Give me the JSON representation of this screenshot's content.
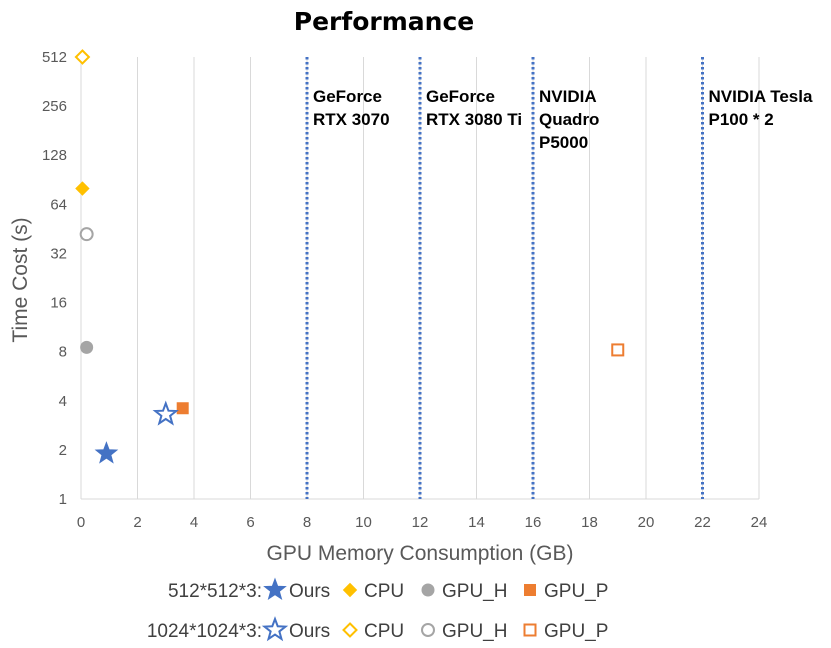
{
  "chart_data": {
    "type": "scatter",
    "title": "Performance",
    "xlabel": "GPU Memory Consumption (GB)",
    "ylabel": "Time Cost (s)",
    "xlim": [
      0,
      24
    ],
    "ylim": [
      1,
      512
    ],
    "yscale": "log2",
    "xticks": [
      "0",
      "2",
      "4",
      "6",
      "8",
      "10",
      "12",
      "14",
      "16",
      "18",
      "20",
      "22",
      "24"
    ],
    "yticks": [
      "1",
      "2",
      "4",
      "8",
      "16",
      "32",
      "64",
      "128",
      "256",
      "512"
    ],
    "grid": "vertical",
    "vlines": [
      {
        "x": 8,
        "label_lines": [
          "GeForce",
          "RTX 3070"
        ]
      },
      {
        "x": 12,
        "label_lines": [
          "GeForce",
          "RTX 3080 Ti"
        ]
      },
      {
        "x": 16,
        "label_lines": [
          "NVIDIA",
          "Quadro",
          "P5000"
        ]
      },
      {
        "x": 22,
        "label_lines": [
          "NVIDIA Tesla",
          "P100 * 2"
        ]
      }
    ],
    "series": [
      {
        "name": "Ours",
        "group": "512*512*3:",
        "marker": "star",
        "filled": true,
        "color": "#4472C4",
        "x": 0.9,
        "y": 1.9
      },
      {
        "name": "CPU",
        "group": "512*512*3:",
        "marker": "diamond",
        "filled": true,
        "color": "#FFC000",
        "x": 0.05,
        "y": 80
      },
      {
        "name": "GPU_H",
        "group": "512*512*3:",
        "marker": "circle",
        "filled": true,
        "color": "#A5A5A5",
        "x": 0.2,
        "y": 8.5
      },
      {
        "name": "GPU_P",
        "group": "512*512*3:",
        "marker": "square",
        "filled": true,
        "color": "#ED7D31",
        "x": 3.6,
        "y": 3.6
      },
      {
        "name": "Ours",
        "group": "1024*1024*3:",
        "marker": "star",
        "filled": false,
        "color": "#4472C4",
        "x": 3.0,
        "y": 3.3
      },
      {
        "name": "CPU",
        "group": "1024*1024*3:",
        "marker": "diamond",
        "filled": false,
        "color": "#FFC000",
        "x": 0.05,
        "y": 512
      },
      {
        "name": "GPU_H",
        "group": "1024*1024*3:",
        "marker": "circle",
        "filled": false,
        "color": "#A5A5A5",
        "x": 0.2,
        "y": 42
      },
      {
        "name": "GPU_P",
        "group": "1024*1024*3:",
        "marker": "square",
        "filled": false,
        "color": "#ED7D31",
        "x": 19.0,
        "y": 8.2
      }
    ],
    "legend": {
      "placement": "bottom",
      "rows": [
        {
          "label": "512*512*3:",
          "filled": true
        },
        {
          "label": "1024*1024*3:",
          "filled": false
        }
      ]
    },
    "colors": {
      "vline": "#4472C4",
      "grid": "#D9D9D9",
      "axis_text": "#595959"
    }
  }
}
